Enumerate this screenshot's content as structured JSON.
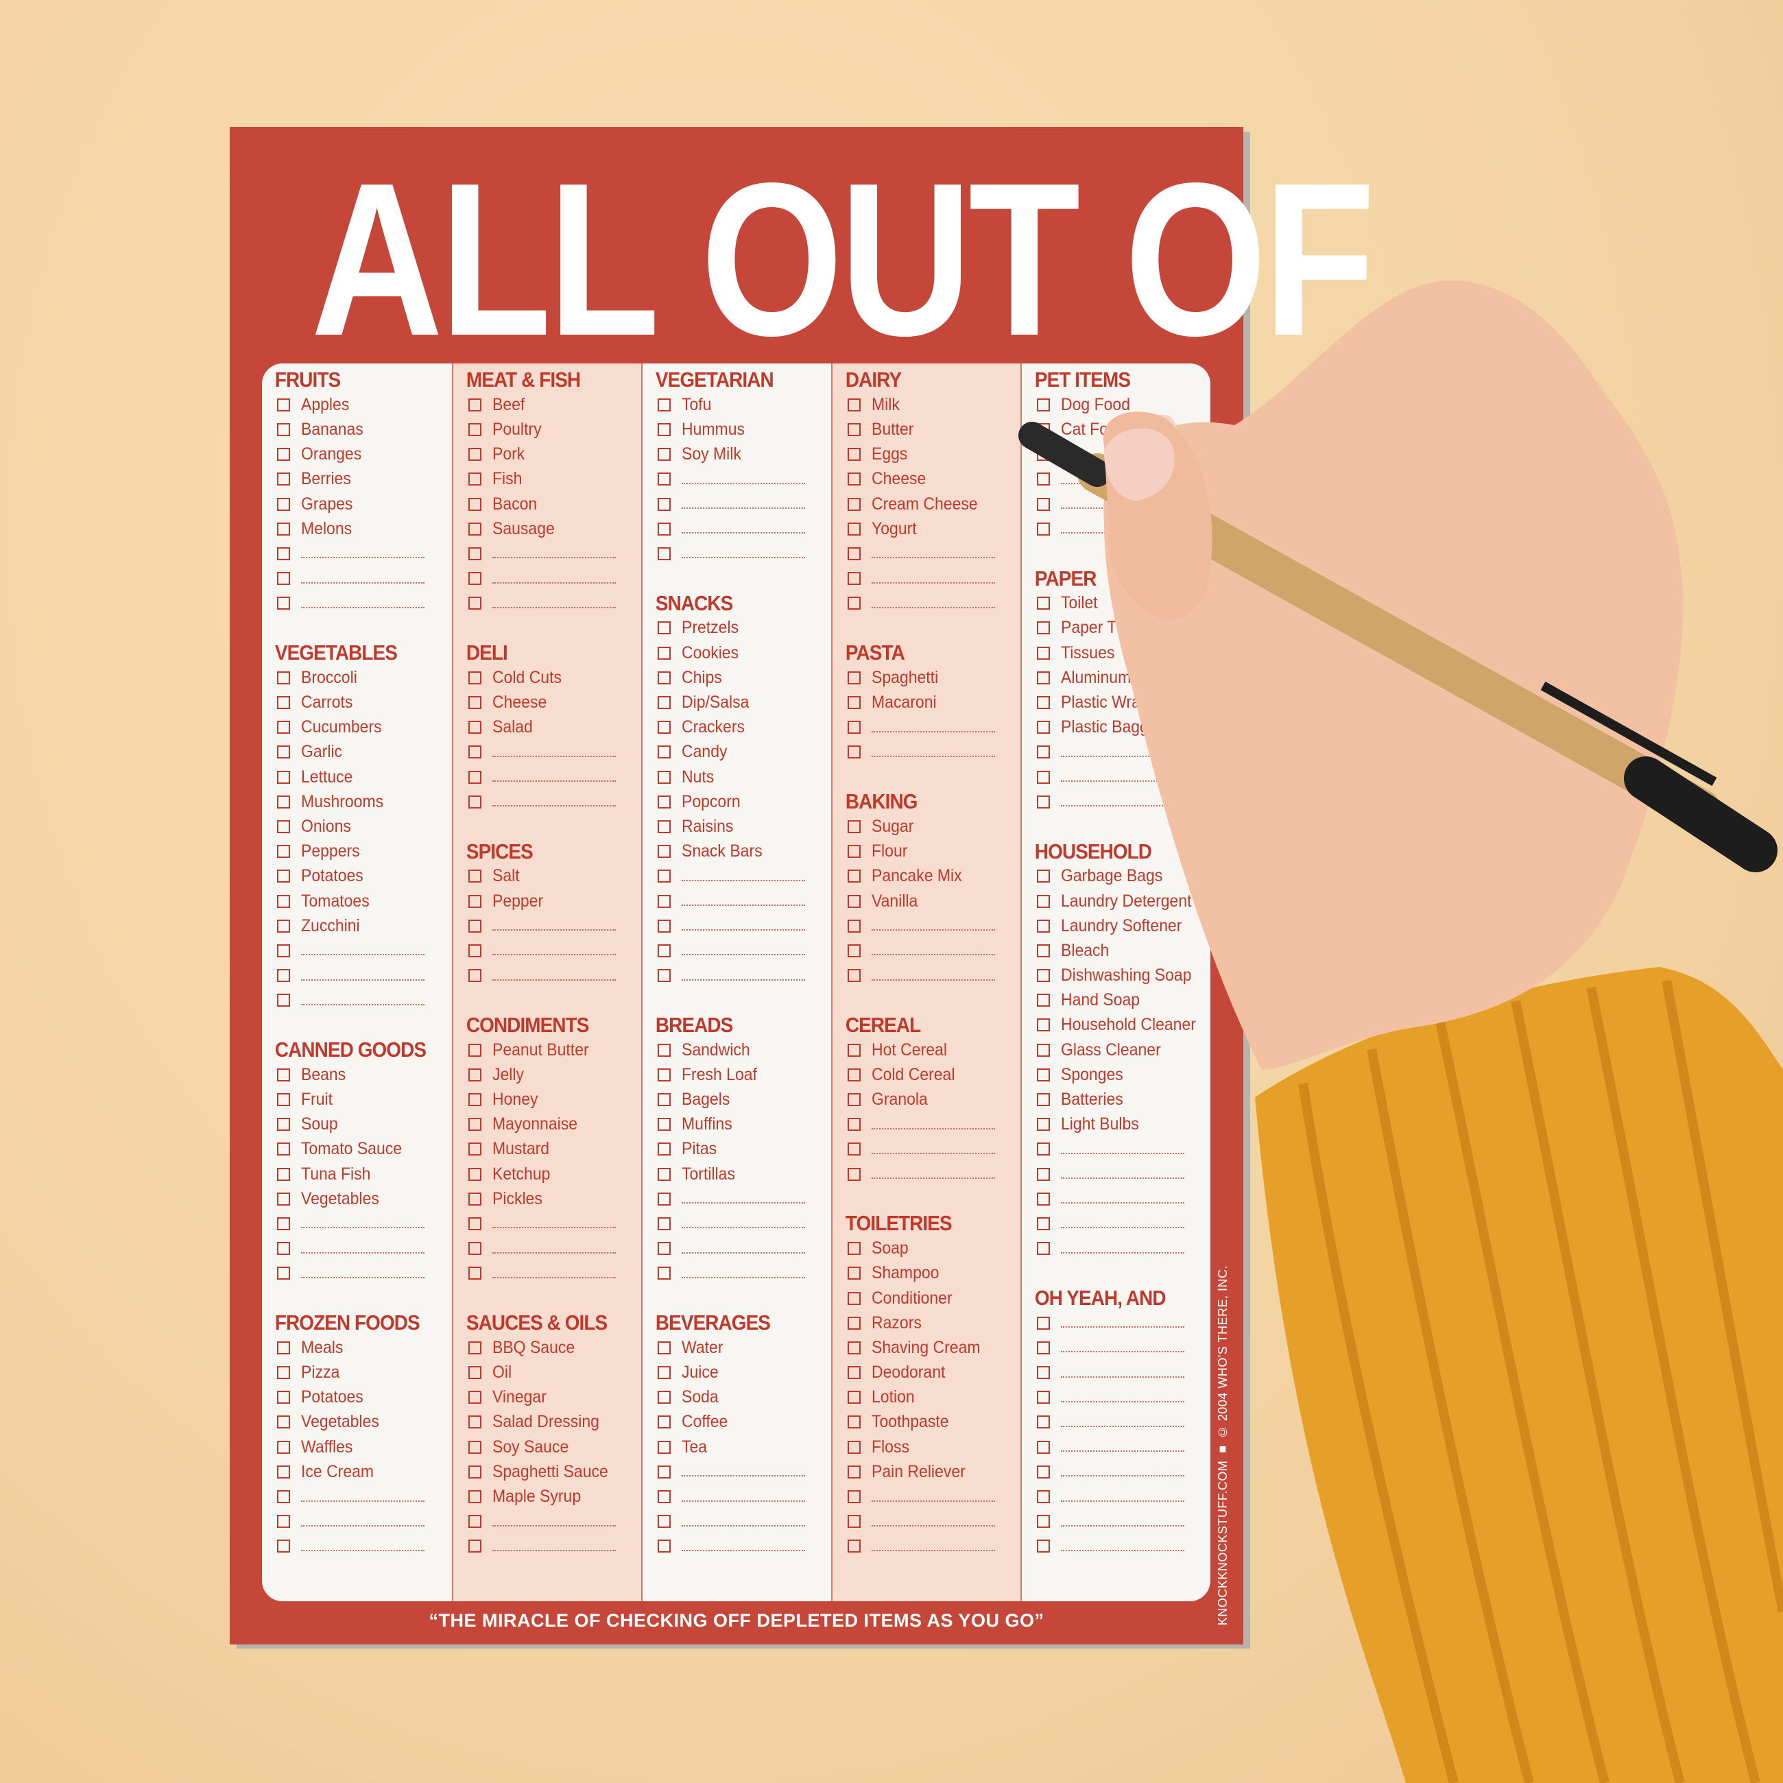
{
  "title": "ALL OUT OF",
  "footer_quote": "“THE MIRACLE OF CHECKING OFF DEPLETED ITEMS AS YOU GO”",
  "side_text": "KNOCKKNOCKSTUFF.COM ■ © 2004 WHO'S THERE, INC.",
  "colors": {
    "pad": "#c4473a",
    "text": "#c0392b",
    "panel": "#f8f6f3",
    "alt_column": "#f6ddcf",
    "background": "#f3d3a3",
    "sweater": "#e8a22a"
  },
  "columns": [
    {
      "sections": [
        {
          "title": "FRUITS",
          "items": [
            "Apples",
            "Bananas",
            "Oranges",
            "Berries",
            "Grapes",
            "Melons",
            "",
            "",
            ""
          ]
        },
        {
          "title": "VEGETABLES",
          "items": [
            "Broccoli",
            "Carrots",
            "Cucumbers",
            "Garlic",
            "Lettuce",
            "Mushrooms",
            "Onions",
            "Peppers",
            "Potatoes",
            "Tomatoes",
            "Zucchini",
            "",
            "",
            ""
          ]
        },
        {
          "title": "CANNED GOODS",
          "items": [
            "Beans",
            "Fruit",
            "Soup",
            "Tomato Sauce",
            "Tuna Fish",
            "Vegetables",
            "",
            "",
            ""
          ]
        },
        {
          "title": "FROZEN FOODS",
          "items": [
            "Meals",
            "Pizza",
            "Potatoes",
            "Vegetables",
            "Waffles",
            "Ice Cream",
            "",
            "",
            ""
          ]
        }
      ]
    },
    {
      "sections": [
        {
          "title": "MEAT & FISH",
          "items": [
            "Beef",
            "Poultry",
            "Pork",
            "Fish",
            "Bacon",
            "Sausage",
            "",
            "",
            ""
          ]
        },
        {
          "title": "DELI",
          "items": [
            "Cold Cuts",
            "Cheese",
            "Salad",
            "",
            "",
            ""
          ]
        },
        {
          "title": "SPICES",
          "items": [
            "Salt",
            "Pepper",
            "",
            "",
            ""
          ]
        },
        {
          "title": "CONDIMENTS",
          "items": [
            "Peanut Butter",
            "Jelly",
            "Honey",
            "Mayonnaise",
            "Mustard",
            "Ketchup",
            "Pickles",
            "",
            "",
            ""
          ]
        },
        {
          "title": "SAUCES & OILS",
          "items": [
            "BBQ Sauce",
            "Oil",
            "Vinegar",
            "Salad Dressing",
            "Soy Sauce",
            "Spaghetti Sauce",
            "Maple Syrup",
            "",
            ""
          ]
        }
      ]
    },
    {
      "sections": [
        {
          "title": "VEGETARIAN",
          "items": [
            "Tofu",
            "Hummus",
            "Soy Milk",
            "",
            "",
            "",
            ""
          ]
        },
        {
          "title": "SNACKS",
          "items": [
            "Pretzels",
            "Cookies",
            "Chips",
            "Dip/Salsa",
            "Crackers",
            "Candy",
            "Nuts",
            "Popcorn",
            "Raisins",
            "Snack Bars",
            "",
            "",
            "",
            "",
            ""
          ]
        },
        {
          "title": "BREADS",
          "items": [
            "Sandwich",
            "Fresh Loaf",
            "Bagels",
            "Muffins",
            "Pitas",
            "Tortillas",
            "",
            "",
            "",
            ""
          ]
        },
        {
          "title": "BEVERAGES",
          "items": [
            "Water",
            "Juice",
            "Soda",
            "Coffee",
            "Tea",
            "",
            "",
            "",
            ""
          ]
        }
      ]
    },
    {
      "sections": [
        {
          "title": "DAIRY",
          "items": [
            "Milk",
            "Butter",
            "Eggs",
            "Cheese",
            "Cream Cheese",
            "Yogurt",
            "",
            "",
            ""
          ]
        },
        {
          "title": "PASTA",
          "items": [
            "Spaghetti",
            "Macaroni",
            "",
            ""
          ]
        },
        {
          "title": "BAKING",
          "items": [
            "Sugar",
            "Flour",
            "Pancake Mix",
            "Vanilla",
            "",
            "",
            ""
          ]
        },
        {
          "title": "CEREAL",
          "items": [
            "Hot Cereal",
            "Cold Cereal",
            "Granola",
            "",
            "",
            ""
          ]
        },
        {
          "title": "TOILETRIES",
          "items": [
            "Soap",
            "Shampoo",
            "Conditioner",
            "Razors",
            "Shaving Cream",
            "Deodorant",
            "Lotion",
            "Toothpaste",
            "Floss",
            "Pain Reliever",
            "",
            "",
            ""
          ]
        }
      ]
    },
    {
      "sections": [
        {
          "title": "PET ITEMS",
          "items": [
            "Dog Food",
            "Cat Fo",
            "",
            "",
            "",
            ""
          ]
        },
        {
          "title": "PAPER",
          "items": [
            "Toilet",
            "Paper T",
            "Tissues",
            "Aluminum",
            "Plastic Wra",
            "Plastic Baggi",
            "",
            "",
            ""
          ]
        },
        {
          "title": "HOUSEHOLD",
          "items": [
            "Garbage Bags",
            "Laundry Detergent",
            "Laundry Softener",
            "Bleach",
            "Dishwashing Soap",
            "Hand Soap",
            "Household Cleaner",
            "Glass Cleaner",
            "Sponges",
            "Batteries",
            "Light Bulbs",
            "",
            "",
            "",
            "",
            ""
          ]
        },
        {
          "title": "OH YEAH, AND",
          "items": [
            "",
            "",
            "",
            "",
            "",
            "",
            "",
            "",
            "",
            ""
          ]
        }
      ]
    }
  ]
}
